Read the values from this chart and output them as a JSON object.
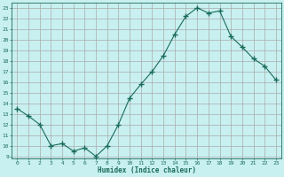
{
  "x": [
    0,
    1,
    2,
    3,
    4,
    5,
    6,
    7,
    8,
    9,
    10,
    11,
    12,
    13,
    14,
    15,
    16,
    17,
    18,
    19,
    20,
    21,
    22,
    23
  ],
  "y": [
    13.5,
    12.8,
    12.0,
    10.0,
    10.2,
    9.5,
    9.8,
    9.0,
    10.0,
    12.0,
    14.5,
    15.8,
    17.0,
    18.5,
    20.5,
    22.2,
    23.0,
    22.5,
    22.7,
    20.3,
    19.3,
    18.2,
    17.5,
    16.2
  ],
  "line_color": "#1a6b5a",
  "marker": "+",
  "marker_size": 4,
  "bg_color": "#c8f0f0",
  "grid_color": "#aaaaaa",
  "xlabel": "Humidex (Indice chaleur)",
  "ylabel_ticks": [
    9,
    10,
    11,
    12,
    13,
    14,
    15,
    16,
    17,
    18,
    19,
    20,
    21,
    22,
    23
  ],
  "xlim": [
    -0.5,
    23.5
  ],
  "ylim": [
    8.8,
    23.5
  ],
  "title": ""
}
